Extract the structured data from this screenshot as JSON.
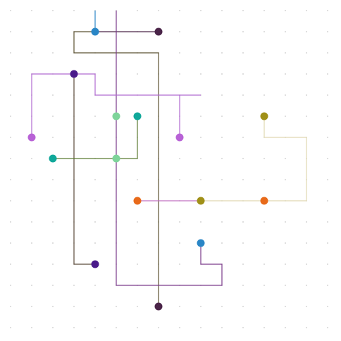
{
  "puzzle": {
    "grid_cols": 16,
    "grid_rows": 16,
    "cell": 30,
    "offset": 15,
    "paths": [
      {
        "name": "wire-blue-top",
        "color": "#2a86c6",
        "points": [
          [
            4,
            0
          ],
          [
            4,
            1
          ]
        ]
      },
      {
        "name": "wire-darkpurple-top",
        "color": "#4a2448",
        "points": [
          [
            4,
            1
          ],
          [
            7,
            1
          ]
        ]
      },
      {
        "name": "wire-darkolive-loop",
        "color": "#5a5030",
        "points": [
          [
            4,
            1
          ],
          [
            3,
            1
          ],
          [
            3,
            2
          ],
          [
            7,
            2
          ],
          [
            7,
            14
          ]
        ]
      },
      {
        "name": "wire-purple-vertical",
        "color": "#7a3a8a",
        "points": [
          [
            5,
            0
          ],
          [
            5,
            13
          ],
          [
            10,
            13
          ],
          [
            10,
            12
          ],
          [
            9,
            12
          ],
          [
            9,
            11
          ]
        ]
      },
      {
        "name": "wire-violet-left",
        "color": "#b06ad0",
        "points": [
          [
            1,
            6
          ],
          [
            1,
            3
          ],
          [
            4,
            3
          ],
          [
            4,
            4
          ],
          [
            9,
            4
          ]
        ]
      },
      {
        "name": "wire-violet-drop",
        "color": "#b06ad0",
        "points": [
          [
            8,
            4
          ],
          [
            8,
            6
          ]
        ]
      },
      {
        "name": "wire-indigo",
        "color": "#5a4a3a",
        "points": [
          [
            3,
            3
          ],
          [
            3,
            12
          ],
          [
            4,
            12
          ]
        ]
      },
      {
        "name": "wire-green-teal",
        "color": "#5a7a30",
        "points": [
          [
            2,
            7
          ],
          [
            6,
            7
          ],
          [
            6,
            5
          ]
        ]
      },
      {
        "name": "wire-orange",
        "color": "#c070c0",
        "points": [
          [
            6,
            9
          ],
          [
            9,
            9
          ]
        ]
      },
      {
        "name": "wire-cream",
        "color": "#e0d8b0",
        "points": [
          [
            9,
            9
          ],
          [
            14,
            9
          ],
          [
            14,
            6
          ],
          [
            12,
            6
          ],
          [
            12,
            5
          ]
        ]
      }
    ],
    "nodes": [
      {
        "name": "node-blue-1",
        "color": "#2a86c6",
        "pos": [
          4,
          1
        ]
      },
      {
        "name": "node-darkpurple-1",
        "color": "#4a2448",
        "pos": [
          7,
          1
        ]
      },
      {
        "name": "node-indigo-1",
        "color": "#4a1a8a",
        "pos": [
          3,
          3
        ]
      },
      {
        "name": "node-mint-1",
        "color": "#7ed49a",
        "pos": [
          5,
          5
        ]
      },
      {
        "name": "node-teal-1",
        "color": "#10a89a",
        "pos": [
          6,
          5
        ]
      },
      {
        "name": "node-olive-1",
        "color": "#a09018",
        "pos": [
          12,
          5
        ]
      },
      {
        "name": "node-violet-1",
        "color": "#b862d6",
        "pos": [
          1,
          6
        ]
      },
      {
        "name": "node-violet-2",
        "color": "#b862d6",
        "pos": [
          8,
          6
        ]
      },
      {
        "name": "node-teal-2",
        "color": "#10a89a",
        "pos": [
          2,
          7
        ]
      },
      {
        "name": "node-mint-2",
        "color": "#7ed49a",
        "pos": [
          5,
          7
        ]
      },
      {
        "name": "node-orange-1",
        "color": "#e86a1a",
        "pos": [
          6,
          9
        ]
      },
      {
        "name": "node-olive-2",
        "color": "#a09018",
        "pos": [
          9,
          9
        ]
      },
      {
        "name": "node-orange-2",
        "color": "#e86a1a",
        "pos": [
          12,
          9
        ]
      },
      {
        "name": "node-blue-2",
        "color": "#2a86c6",
        "pos": [
          9,
          11
        ]
      },
      {
        "name": "node-indigo-2",
        "color": "#4a1a8a",
        "pos": [
          4,
          12
        ]
      },
      {
        "name": "node-darkpurple-2",
        "color": "#4a2448",
        "pos": [
          7,
          14
        ]
      }
    ]
  }
}
